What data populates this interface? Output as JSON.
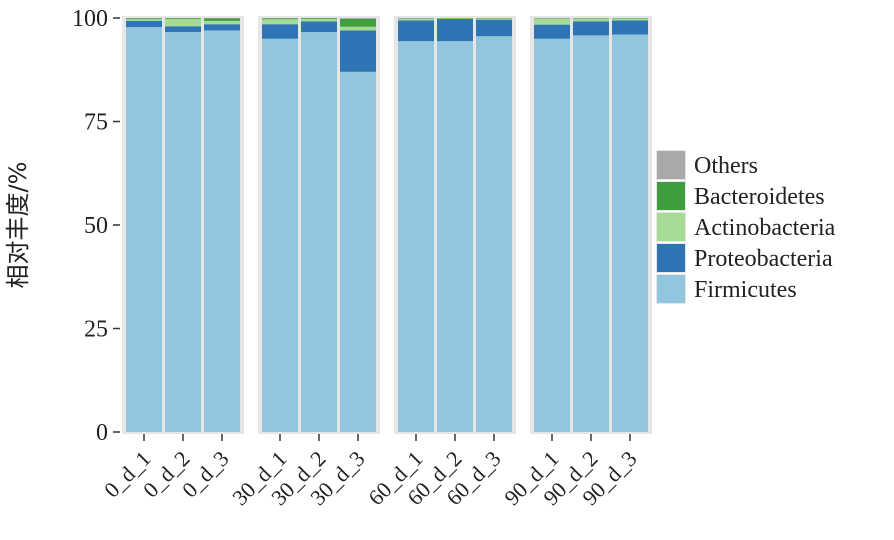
{
  "chart_data": {
    "type": "bar",
    "stacked": true,
    "ylabel": "相对丰度/%",
    "ylim": [
      0,
      100
    ],
    "yticks": [
      "0",
      "25",
      "50",
      "75",
      "100"
    ],
    "groups": [
      {
        "categories": [
          "0_d_1",
          "0_d_2",
          "0_d_3"
        ]
      },
      {
        "categories": [
          "30_d_1",
          "30_d_2",
          "30_d_3"
        ]
      },
      {
        "categories": [
          "60_d_1",
          "60_d_2",
          "60_d_3"
        ]
      },
      {
        "categories": [
          "90_d_1",
          "90_d_2",
          "90_d_3"
        ]
      }
    ],
    "categories": [
      "0_d_1",
      "0_d_2",
      "0_d_3",
      "30_d_1",
      "30_d_2",
      "30_d_3",
      "60_d_1",
      "60_d_2",
      "60_d_3",
      "90_d_1",
      "90_d_2",
      "90_d_3"
    ],
    "series": [
      {
        "name": "Firmicutes",
        "color": "#92c5de",
        "values": [
          97.8,
          96.6,
          97.0,
          95.0,
          96.6,
          87.0,
          94.4,
          94.4,
          95.6,
          95.0,
          95.8,
          96.0
        ]
      },
      {
        "name": "Proteobacteria",
        "color": "#2f75b5",
        "values": [
          1.5,
          1.4,
          1.5,
          3.5,
          2.6,
          10.0,
          5.0,
          5.4,
          4.0,
          3.4,
          3.4,
          3.4
        ]
      },
      {
        "name": "Actinobacteria",
        "color": "#a6db95",
        "values": [
          0.4,
          1.8,
          0.8,
          1.2,
          0.6,
          0.9,
          0.4,
          0.1,
          0.3,
          1.4,
          0.6,
          0.5
        ]
      },
      {
        "name": "Bacteroidetes",
        "color": "#3f9e3f",
        "values": [
          0.2,
          0.2,
          0.6,
          0.2,
          0.2,
          1.9,
          0.1,
          0.1,
          0.1,
          0.1,
          0.1,
          0.1
        ]
      },
      {
        "name": "Others",
        "color": "#a9a9a9",
        "values": [
          0.1,
          0.0,
          0.1,
          0.1,
          0.0,
          0.2,
          0.1,
          0.0,
          0.0,
          0.1,
          0.1,
          0.0
        ]
      }
    ],
    "legend": {
      "placement": "right",
      "order": [
        "Others",
        "Bacteroidetes",
        "Actinobacteria",
        "Proteobacteria",
        "Firmicutes"
      ]
    },
    "panel_background": "#e6e6e6",
    "grid": false
  }
}
